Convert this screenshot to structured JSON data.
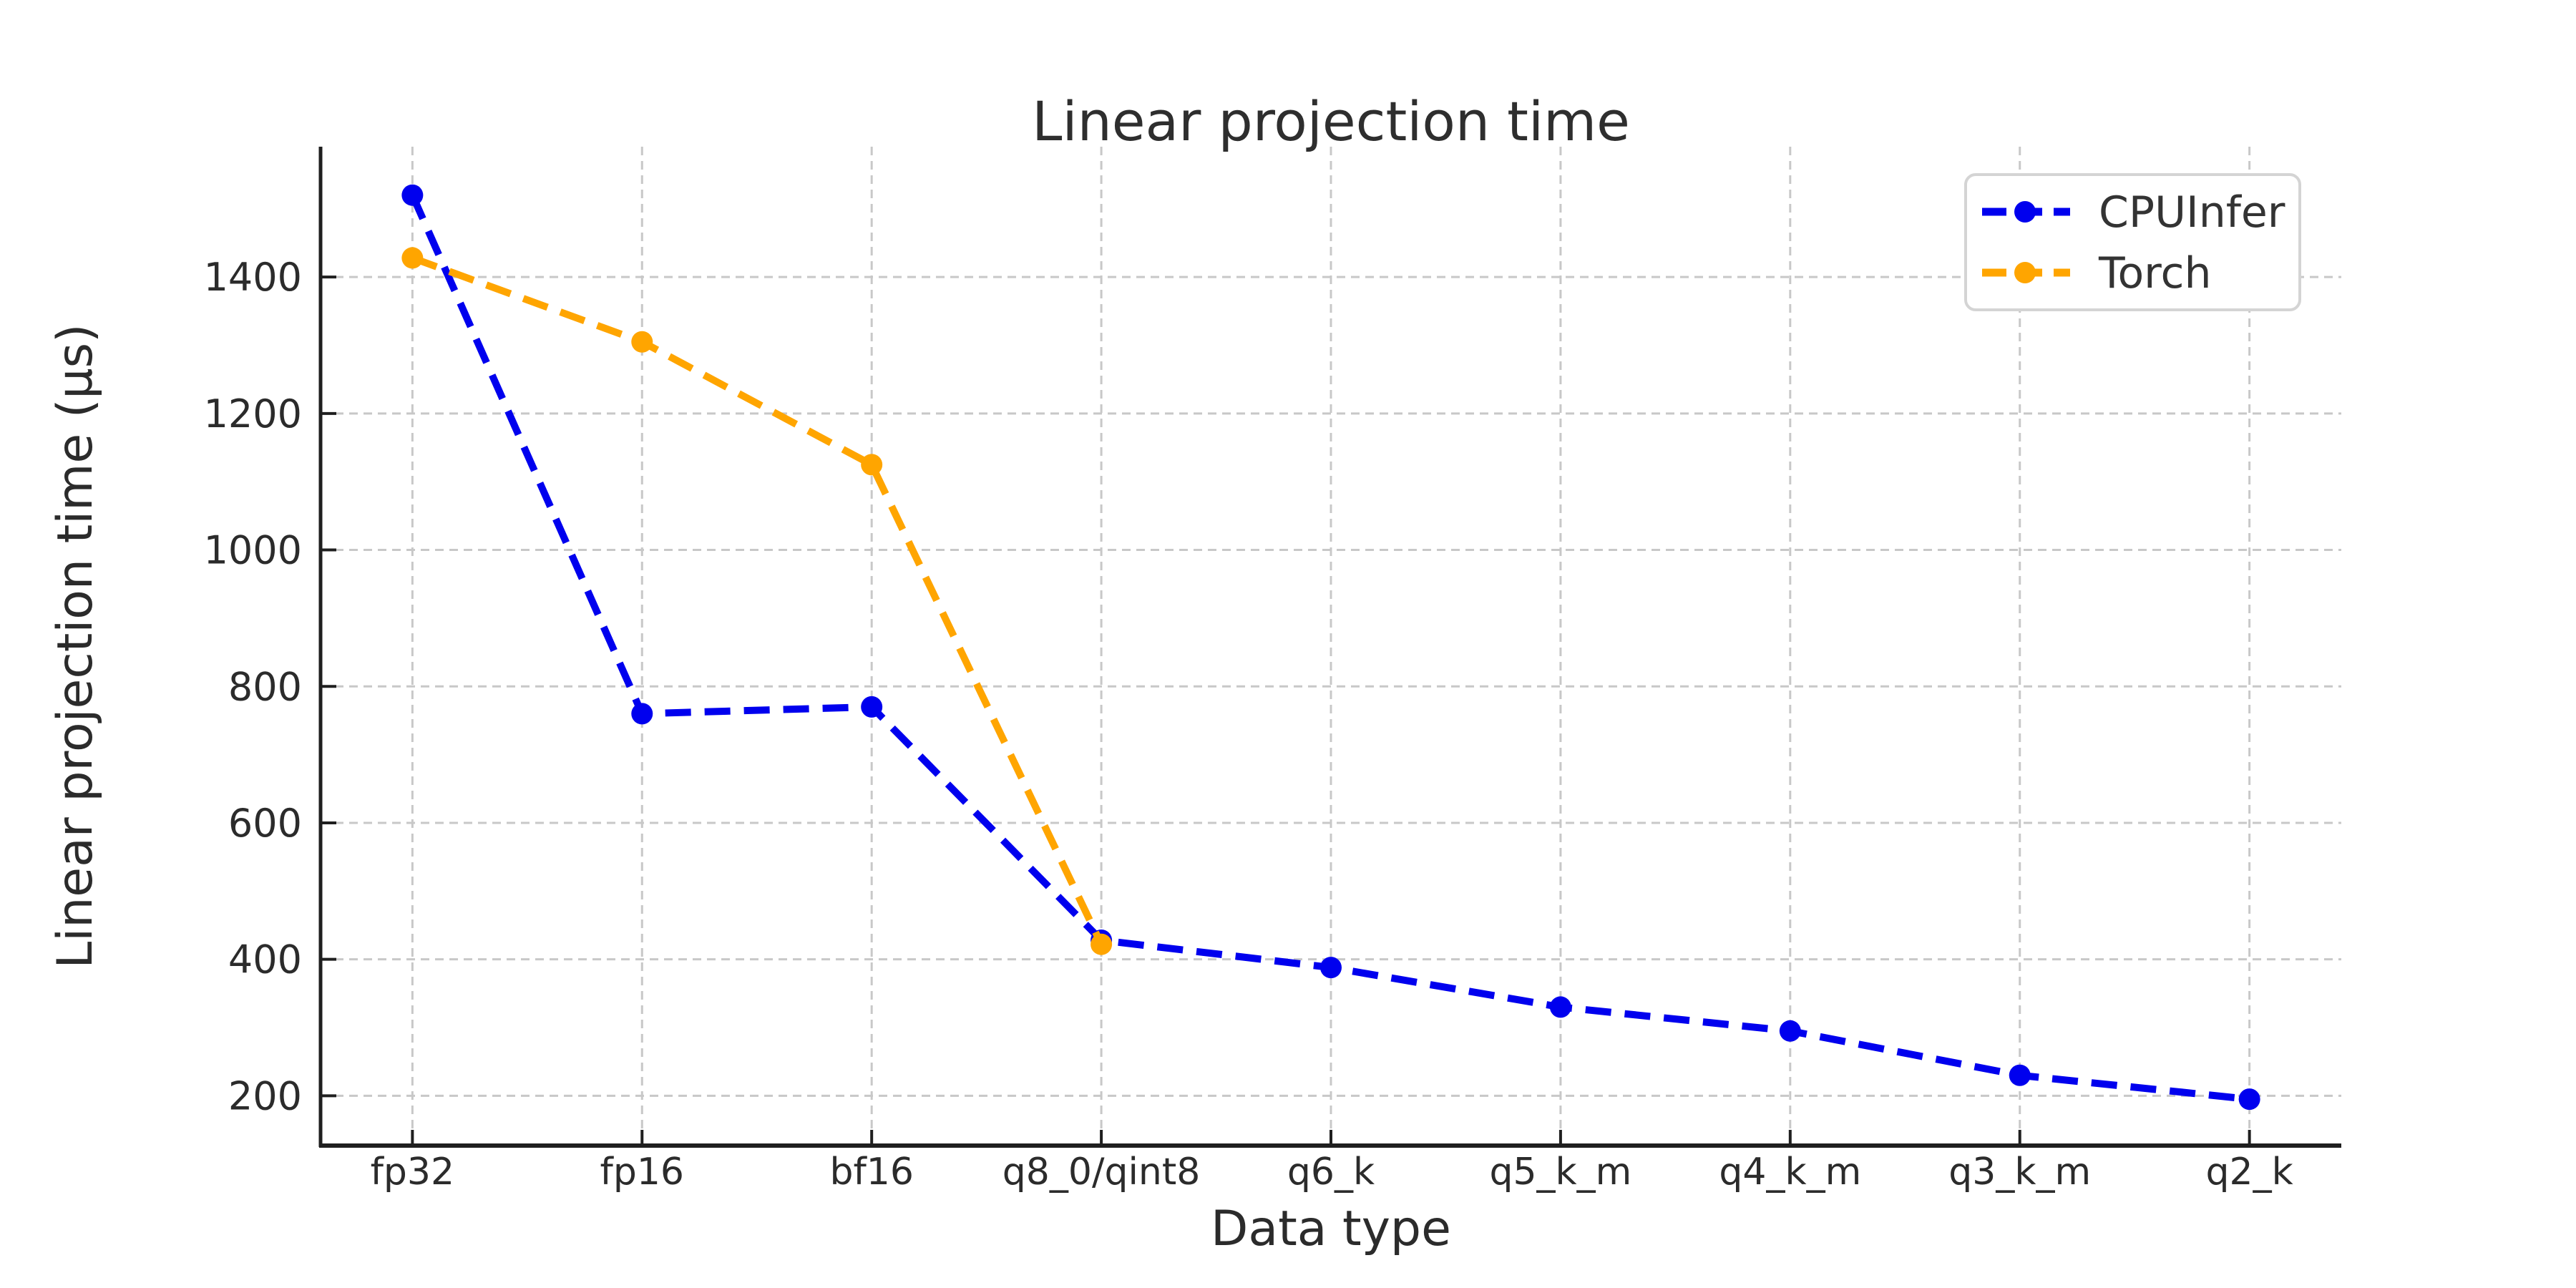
{
  "figure": {
    "background": "#ffffff"
  },
  "chart_data": {
    "type": "line",
    "title": "Linear projection time",
    "xlabel": "Data type",
    "ylabel": "Linear projection time (µs)",
    "categories": [
      "fp32",
      "fp16",
      "bf16",
      "q8_0/qint8",
      "q6_k",
      "q5_k_m",
      "q4_k_m",
      "q3_k_m",
      "q2_k"
    ],
    "series": [
      {
        "name": "CPUInfer",
        "color": "#0000ee",
        "values": [
          1520,
          760,
          770,
          428,
          388,
          330,
          295,
          230,
          195
        ]
      },
      {
        "name": "Torch",
        "color": "#ffa500",
        "values": [
          1428,
          1305,
          1125,
          422
        ]
      }
    ],
    "yticks": [
      200,
      400,
      600,
      800,
      1000,
      1200,
      1400
    ],
    "ylim": [
      127,
      1591
    ],
    "xlim": [
      -0.4,
      8.4
    ],
    "grid": true,
    "grid_style": "dashed",
    "grid_color": "#c8c8c8",
    "spine_color": "#1f1f1f",
    "tick_color": "#1f1f1f",
    "text_color": "#2b2b2b",
    "line_style": "dashed",
    "marker": "circle",
    "legend_position": "upper right",
    "legend_border_color": "#d4d4d4",
    "legend_background": "#ffffff"
  }
}
